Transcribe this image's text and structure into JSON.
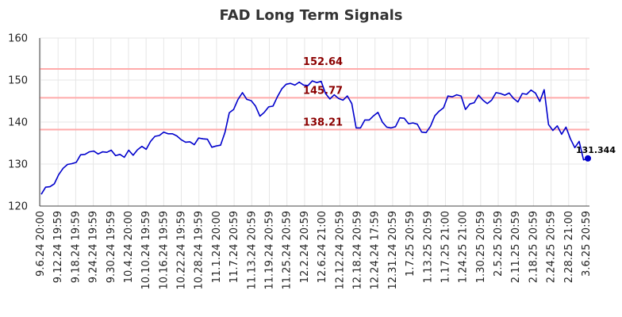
{
  "chart_data": {
    "type": "line",
    "title": "FAD Long Term Signals",
    "xlabel": "",
    "ylabel": "",
    "ylim": [
      120,
      160
    ],
    "yticks": [
      120,
      130,
      140,
      150,
      160
    ],
    "grid": true,
    "x_tick_labels": [
      "9.6.24 20:00",
      "9.12.24 19:59",
      "9.18.24 19:59",
      "9.24.24 19:59",
      "9.30.24 19:59",
      "10.4.24 20:00",
      "10.10.24 19:59",
      "10.16.24 19:59",
      "10.22.24 19:59",
      "10.28.24 19:59",
      "11.1.24 20:00",
      "11.7.24 20:59",
      "11.13.24 20:59",
      "11.19.24 20:59",
      "11.25.24 20:59",
      "12.2.24 20:59",
      "12.6.24 21:00",
      "12.12.24 20:59",
      "12.18.24 20:59",
      "12.24.24 17:59",
      "12.31.24 20:59",
      "1.7.25 20:59",
      "1.13.25 20:59",
      "1.17.25 21:00",
      "1.24.25 21:00",
      "1.30.25 20:59",
      "2.5.25 20:59",
      "2.11.25 20:59",
      "2.18.25 20:59",
      "2.24.25 20:59",
      "2.28.25 21:00",
      "3.6.25 20:59"
    ],
    "levels": [
      {
        "value": 152.64,
        "label": "152.64",
        "color": "#ffaaaa"
      },
      {
        "value": 145.77,
        "label": "145.77",
        "color": "#ffaaaa"
      },
      {
        "value": 138.21,
        "label": "138.21",
        "color": "#ffaaaa"
      }
    ],
    "line_color": "#0000cc",
    "series": [
      {
        "values": [
          122.8,
          124.5,
          124.6,
          125.3,
          127.5,
          129.0,
          129.9,
          130.1,
          130.4,
          132.2,
          132.3,
          132.9,
          133.1,
          132.4,
          132.9,
          132.8,
          133.3,
          132.0,
          132.3,
          131.6,
          133.3,
          132.1,
          133.4,
          134.2,
          133.5,
          135.4,
          136.6,
          136.8,
          137.6,
          137.2,
          137.2,
          136.7,
          135.8,
          135.2,
          135.3,
          134.6,
          136.2,
          136.0,
          135.9,
          134.0,
          134.3,
          134.5,
          137.5,
          142.2,
          143.0,
          145.4,
          147.0,
          145.4,
          145.1,
          143.8,
          141.4,
          142.3,
          143.6,
          143.8,
          146.0,
          147.9,
          149.0,
          149.2,
          148.8,
          149.5,
          148.8,
          148.7,
          149.8,
          149.4,
          149.7,
          146.8,
          145.5,
          146.5,
          145.6,
          145.2,
          146.2,
          144.4,
          138.6,
          138.6,
          140.5,
          140.5,
          141.5,
          142.3,
          140.0,
          138.8,
          138.6,
          138.9,
          141.0,
          140.9,
          139.6,
          139.8,
          139.5,
          137.6,
          137.5,
          139.0,
          141.5,
          142.6,
          143.4,
          146.2,
          146.0,
          146.5,
          146.2,
          143.0,
          144.3,
          144.6,
          146.4,
          145.2,
          144.4,
          145.2,
          147.0,
          146.8,
          146.4,
          146.9,
          145.6,
          144.8,
          146.8,
          146.6,
          147.6,
          146.9,
          144.9,
          147.7,
          139.4,
          138.0,
          139.1,
          137.1,
          138.8,
          136.0,
          133.9,
          135.4,
          131.0,
          131.344
        ]
      }
    ],
    "last_value": 131.344,
    "last_label": "131.344"
  }
}
